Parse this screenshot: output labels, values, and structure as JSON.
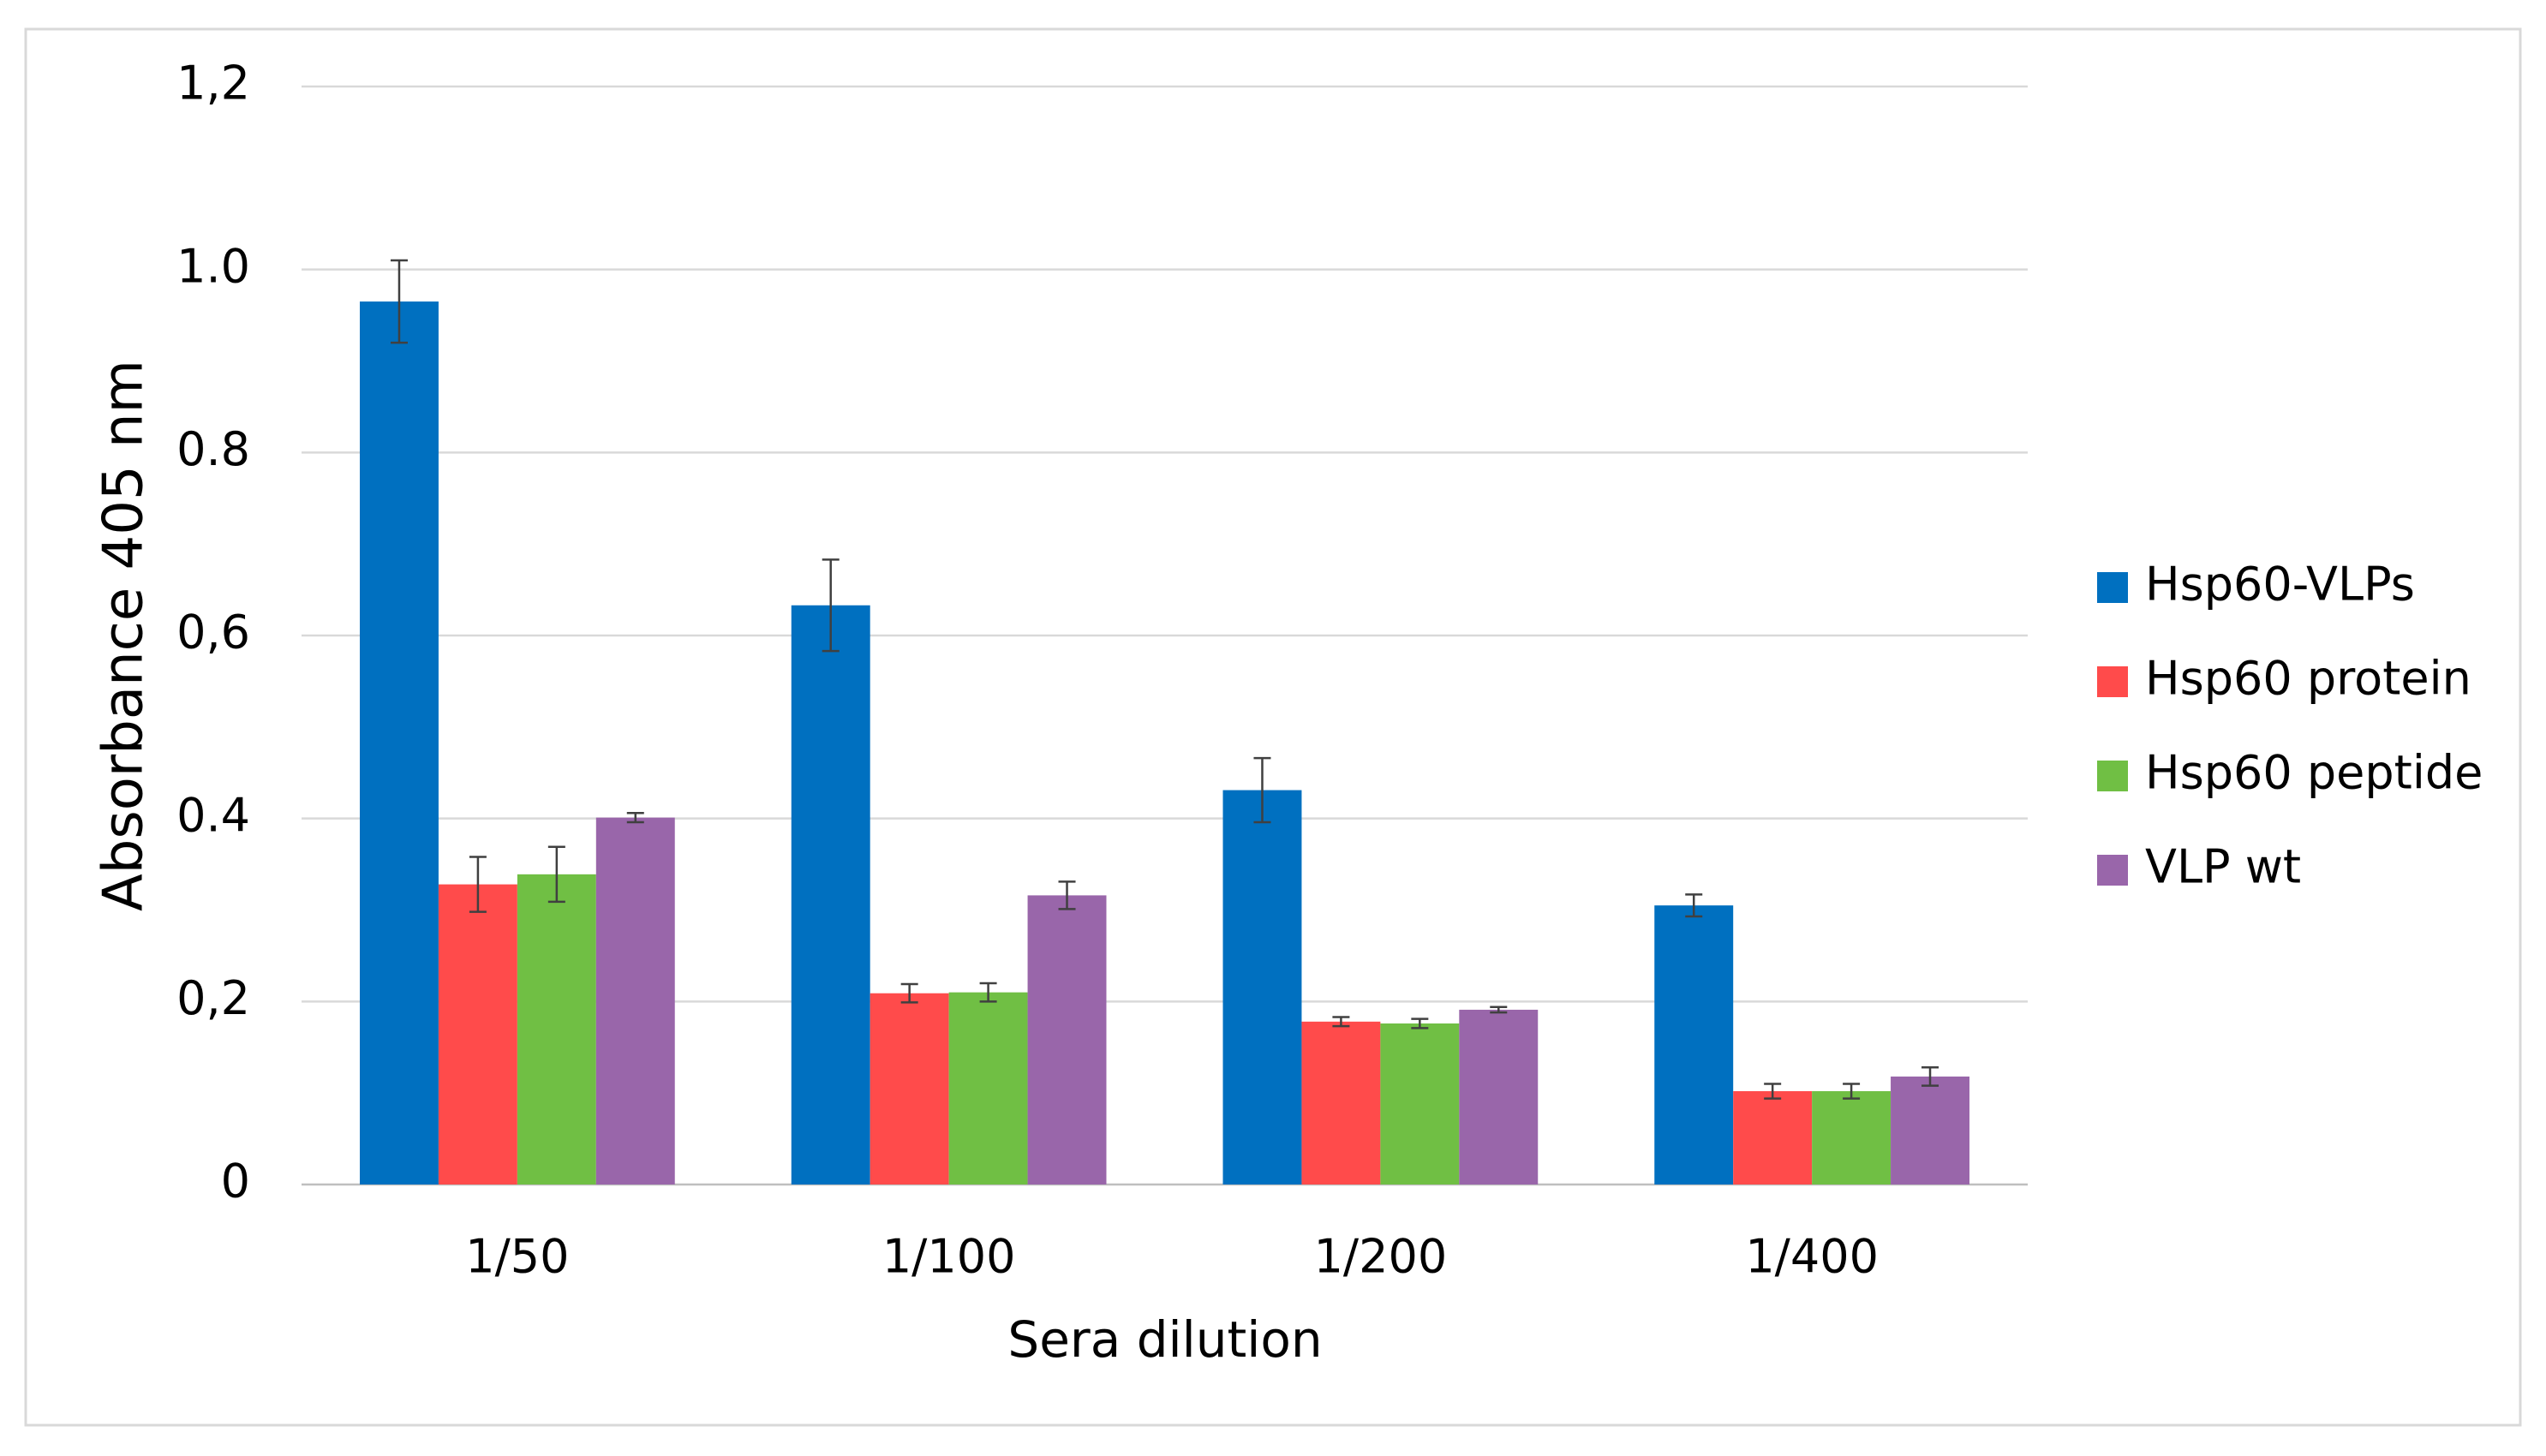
{
  "chart_data": {
    "type": "bar",
    "xlabel": "Sera dilution",
    "ylabel": "Absorbance 405 nm",
    "categories": [
      "1/50",
      "1/100",
      "1/200",
      "1/400"
    ],
    "series": [
      {
        "name": "Hsp60-VLPs",
        "color": "#0070c0",
        "values": [
          0.965,
          0.633,
          0.431,
          0.305
        ],
        "errors": [
          0.045,
          0.05,
          0.035,
          0.012
        ]
      },
      {
        "name": "Hsp60 protein",
        "color": "#ff4b4b",
        "values": [
          0.328,
          0.209,
          0.178,
          0.102
        ],
        "errors": [
          0.03,
          0.01,
          0.005,
          0.008
        ]
      },
      {
        "name": "Hsp60 peptide",
        "color": "#70bf44",
        "values": [
          0.339,
          0.21,
          0.176,
          0.102
        ],
        "errors": [
          0.03,
          0.01,
          0.005,
          0.008
        ]
      },
      {
        "name": "VLP wt",
        "color": "#9966aa",
        "values": [
          0.401,
          0.316,
          0.191,
          0.118
        ],
        "errors": [
          0.005,
          0.015,
          0.003,
          0.01
        ]
      }
    ],
    "ylim": [
      0,
      1.2
    ],
    "yticks": [
      0,
      {
        "value": 0.2,
        "label": "0,2"
      },
      {
        "value": 0.4,
        "label": "0.4"
      },
      {
        "value": 0.6,
        "label": "0,6"
      },
      {
        "value": 0.8,
        "label": "0.8"
      },
      {
        "value": 1.0,
        "label": "1.0"
      },
      {
        "value": 1.2,
        "label": "1,2"
      }
    ],
    "grid": true,
    "legend": "right"
  }
}
